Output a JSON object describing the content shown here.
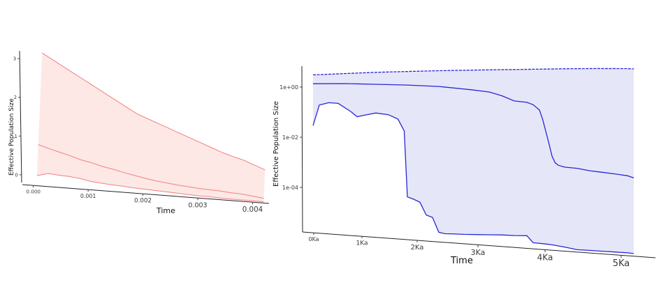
{
  "chart_data": [
    {
      "type": "area",
      "title": "",
      "xlabel": "Time",
      "ylabel": "Effective Population Size",
      "xlim": [
        -0.0002,
        0.0043
      ],
      "ylim": [
        -0.2,
        3.2
      ],
      "x_ticks": [
        0.0,
        0.001,
        0.002,
        0.003,
        0.004
      ],
      "x_tick_labels": [
        "0.000",
        "0.001",
        "0.002",
        "0.003",
        "0.004"
      ],
      "y_ticks": [
        0,
        1,
        2,
        3
      ],
      "y_tick_labels": [
        "0",
        "1",
        "2",
        "3"
      ],
      "grid": false,
      "colors": {
        "line": "#f08080",
        "fill": "#fde8e6"
      },
      "x": [
        0.0,
        0.0002,
        0.0004,
        0.0006,
        0.0008,
        0.001,
        0.0012,
        0.0014,
        0.0016,
        0.0018,
        0.002,
        0.0022,
        0.0024,
        0.0026,
        0.0028,
        0.003,
        0.0032,
        0.0034,
        0.0036,
        0.0038,
        0.004,
        0.0042
      ],
      "series": [
        {
          "role": "upper",
          "values": [
            3.15,
            3.0,
            2.85,
            2.7,
            2.55,
            2.4,
            2.25,
            2.1,
            1.95,
            1.8,
            1.7,
            1.6,
            1.5,
            1.4,
            1.3,
            1.2,
            1.1,
            1.0,
            0.92,
            0.85,
            0.75,
            0.65
          ]
        },
        {
          "role": "median",
          "values": [
            0.8,
            0.72,
            0.65,
            0.58,
            0.5,
            0.45,
            0.38,
            0.33,
            0.27,
            0.22,
            0.17,
            0.13,
            0.1,
            0.07,
            0.05,
            0.03,
            0.02,
            0.01,
            -0.01,
            -0.02,
            -0.05,
            -0.08
          ]
        },
        {
          "role": "lower",
          "values": [
            0.0,
            0.08,
            0.06,
            0.05,
            0.02,
            -0.03,
            -0.05,
            -0.07,
            -0.08,
            -0.1,
            -0.11,
            -0.12,
            -0.13,
            -0.14,
            -0.15,
            -0.16,
            -0.16,
            -0.17,
            -0.17,
            -0.17,
            -0.17,
            -0.17
          ]
        }
      ]
    },
    {
      "type": "area",
      "title": "",
      "xlabel": "Time",
      "ylabel": "Effective Population Size",
      "y_scale": "log",
      "xlim": [
        0,
        5100
      ],
      "ylim": [
        2e-06,
        3
      ],
      "x_ticks": [
        0,
        1000,
        2000,
        3000,
        4000,
        5000
      ],
      "x_tick_labels": [
        "0Ka",
        "1Ka",
        "2Ka",
        "3Ka",
        "4Ka",
        "5Ka"
      ],
      "y_ticks": [
        0.0001,
        0.01,
        1
      ],
      "y_tick_labels": [
        "1e-04",
        "1e-02",
        "1e+00"
      ],
      "grid": false,
      "colors": {
        "line": "#2727d6",
        "fill": "#e6e6f9"
      },
      "series": [
        {
          "role": "upper",
          "x": [
            0,
            500,
            1000,
            1500,
            2000,
            2500,
            3000,
            3500,
            4000,
            4500,
            5000,
            5100
          ],
          "values": [
            1.6,
            1.75,
            1.9,
            2.0,
            2.1,
            2.15,
            2.2,
            2.25,
            2.3,
            2.3,
            2.25,
            2.2
          ]
        },
        {
          "role": "median",
          "x": [
            0,
            500,
            1000,
            1500,
            2000,
            2500,
            2800,
            3000,
            3200,
            3400,
            3500,
            3600,
            3650,
            3700,
            3750,
            3800,
            3850,
            3900,
            4000,
            4200,
            4400,
            4600,
            4800,
            5000,
            5100
          ],
          "values": [
            0.8,
            0.8,
            0.75,
            0.7,
            0.62,
            0.48,
            0.4,
            0.3,
            0.2,
            0.18,
            0.15,
            0.1,
            0.05,
            0.02,
            0.008,
            0.003,
            0.0018,
            0.0015,
            0.0013,
            0.0012,
            0.001,
            0.0009,
            0.0008,
            0.0007,
            0.0006
          ]
        },
        {
          "role": "lower",
          "x": [
            0,
            100,
            250,
            400,
            600,
            700,
            850,
            1000,
            1200,
            1350,
            1450,
            1500,
            1600,
            1700,
            1800,
            1900,
            2000,
            2100,
            2200,
            2400,
            2600,
            2800,
            3000,
            3200,
            3400,
            3500,
            3700,
            3800,
            4000,
            4200,
            4400,
            4600,
            4800,
            5000,
            5100
          ],
          "values": [
            0.03,
            0.15,
            0.18,
            0.17,
            0.09,
            0.06,
            0.07,
            0.08,
            0.07,
            0.05,
            0.02,
            0.00012,
            0.0001,
            8e-05,
            3e-05,
            2.5e-05,
            8e-06,
            7.2e-06,
            7.2e-06,
            7e-06,
            7e-06,
            7e-06,
            7e-06,
            6.8e-06,
            6.8e-06,
            4e-06,
            3.7e-06,
            3.5e-06,
            3e-06,
            2.5e-06,
            2.4e-06,
            2.3e-06,
            2.2e-06,
            2.1e-06,
            2e-06
          ]
        }
      ]
    }
  ]
}
